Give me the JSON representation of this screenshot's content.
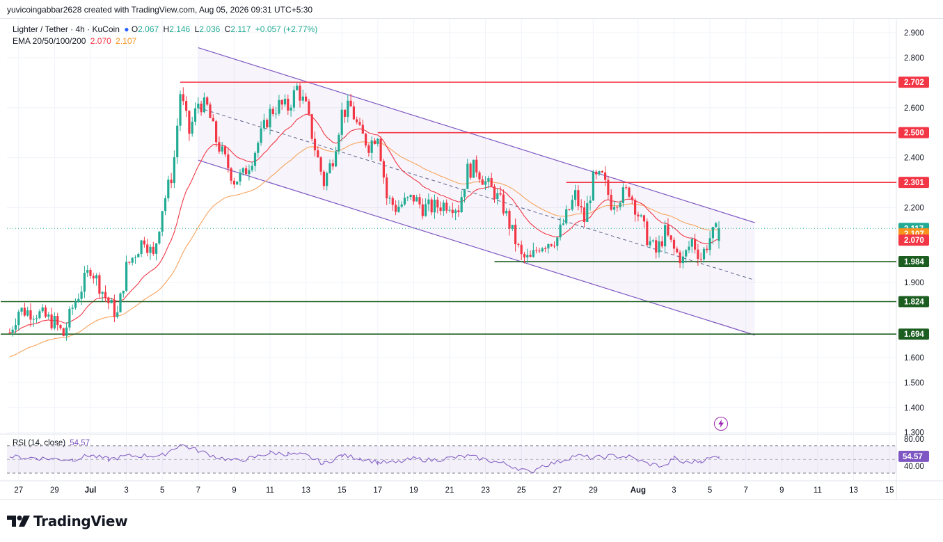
{
  "header": {
    "attribution": "yuvicoingabbar2628 created with TradingView.com, Aug 05, 2026 09:31 UTC+5:30",
    "symbol": "Lighter / Tether · 4h · KuCoin",
    "ohlc": {
      "o_label": "O",
      "o": "2.067",
      "h_label": "H",
      "h": "2.146",
      "l_label": "L",
      "l": "2.036",
      "c_label": "C",
      "c": "2.117",
      "change": "+0.057 (+2.77%)"
    },
    "ema_label": "EMA 20/50/100/200",
    "ema_20": "2.070",
    "ema_50": "2.107"
  },
  "rsi": {
    "label": "RSI (14, close)",
    "value": "54.57"
  },
  "logo": {
    "text": "TradingView",
    "icon": "tradingview-logo-icon"
  },
  "flash_icon": "lightning-icon",
  "colors": {
    "up": "#22ab94",
    "down": "#f23645",
    "ema20": "#f23645",
    "ema50": "#f7a35c",
    "channel": "#7e57c2",
    "resistance": "#f23645",
    "support": "#1b5e20",
    "rsi": "#7e57c2"
  },
  "chart_data": {
    "type": "candlestick",
    "title": "Lighter / Tether · 4h · KuCoin",
    "ylim": [
      1.3,
      2.9
    ],
    "y_ticks": [
      "2.900",
      "2.800",
      "2.600",
      "2.400",
      "2.200",
      "1.900",
      "1.600",
      "1.500",
      "1.400",
      "1.300"
    ],
    "y_tick_values": [
      2.9,
      2.8,
      2.6,
      2.4,
      2.2,
      1.9,
      1.6,
      1.5,
      1.4,
      1.3
    ],
    "x_ticks": [
      "27",
      "29",
      "Jul",
      "3",
      "5",
      "7",
      "9",
      "11",
      "13",
      "15",
      "17",
      "19",
      "21",
      "23",
      "25",
      "27",
      "29",
      "Aug",
      "3",
      "5",
      "7",
      "9",
      "11",
      "13",
      "15"
    ],
    "x_tick_days": [
      -4,
      -2,
      0,
      2,
      4,
      6,
      8,
      10,
      12,
      14,
      16,
      18,
      20,
      22,
      24,
      26,
      28,
      30.5,
      32.5,
      34.5,
      36.5,
      38.5,
      40.5,
      42.5,
      44.5
    ],
    "close_path": [
      [
        -4.5,
        1.7
      ],
      [
        -4,
        1.79
      ],
      [
        -3,
        1.78
      ],
      [
        -2,
        1.74
      ],
      [
        -1.5,
        1.69
      ],
      [
        -1,
        1.8
      ],
      [
        0,
        1.96
      ],
      [
        1,
        1.82
      ],
      [
        1.5,
        1.77
      ],
      [
        2,
        1.96
      ],
      [
        3,
        2.08
      ],
      [
        3.5,
        2.0
      ],
      [
        4,
        2.2
      ],
      [
        4.6,
        2.35
      ],
      [
        5,
        2.66
      ],
      [
        5.5,
        2.5
      ],
      [
        6,
        2.62
      ],
      [
        6.5,
        2.6
      ],
      [
        7,
        2.47
      ],
      [
        8,
        2.31
      ],
      [
        8.5,
        2.33
      ],
      [
        9,
        2.4
      ],
      [
        10,
        2.58
      ],
      [
        10.5,
        2.61
      ],
      [
        11,
        2.6
      ],
      [
        11.5,
        2.68
      ],
      [
        12,
        2.6
      ],
      [
        12.5,
        2.44
      ],
      [
        13,
        2.3
      ],
      [
        13.5,
        2.4
      ],
      [
        14,
        2.58
      ],
      [
        14.5,
        2.6
      ],
      [
        15,
        2.5
      ],
      [
        15.5,
        2.45
      ],
      [
        16,
        2.5
      ],
      [
        16.5,
        2.24
      ],
      [
        17,
        2.2
      ],
      [
        18,
        2.24
      ],
      [
        18.5,
        2.2
      ],
      [
        19,
        2.2
      ],
      [
        20,
        2.22
      ],
      [
        20.5,
        2.2
      ],
      [
        21,
        2.35
      ],
      [
        21.5,
        2.36
      ],
      [
        22,
        2.3
      ],
      [
        22.5,
        2.26
      ],
      [
        23,
        2.2
      ],
      [
        24,
        2.0
      ],
      [
        24.5,
        1.99
      ],
      [
        25,
        2.05
      ],
      [
        26,
        2.08
      ],
      [
        27,
        2.25
      ],
      [
        27.5,
        2.15
      ],
      [
        28,
        2.31
      ],
      [
        28.5,
        2.32
      ],
      [
        29,
        2.22
      ],
      [
        30,
        2.27
      ],
      [
        31,
        2.08
      ],
      [
        31.5,
        2.02
      ],
      [
        32,
        2.1
      ],
      [
        32.5,
        2.03
      ],
      [
        33,
        1.99
      ],
      [
        33.5,
        2.07
      ],
      [
        34,
        2.0
      ],
      [
        34.5,
        2.08
      ],
      [
        35,
        2.117
      ]
    ],
    "ema20_last": 2.07,
    "ema50_last": 2.107,
    "channel": {
      "upper": [
        [
          6,
          2.84
        ],
        [
          37,
          2.14
        ]
      ],
      "mid": [
        [
          6,
          2.6
        ],
        [
          37,
          1.91
        ]
      ],
      "lower": [
        [
          6,
          2.39
        ],
        [
          37,
          1.69
        ]
      ]
    },
    "horizontal_levels": [
      {
        "value": 2.702,
        "label": "2.702",
        "kind": "resistance",
        "from_day": 5
      },
      {
        "value": 2.5,
        "label": "2.500",
        "kind": "resistance",
        "from_day": 16
      },
      {
        "value": 2.301,
        "label": "2.301",
        "kind": "resistance",
        "from_day": 26.5
      },
      {
        "value": 1.984,
        "label": "1.984",
        "kind": "support",
        "from_day": 22.5
      },
      {
        "value": 1.824,
        "label": "1.824",
        "kind": "support",
        "from_day": -5
      },
      {
        "value": 1.694,
        "label": "1.694",
        "kind": "support",
        "from_day": -5
      }
    ],
    "price_labels": [
      {
        "value": 2.117,
        "label": "2.117",
        "color": "#22ab94"
      },
      {
        "value": 2.107,
        "label": "2.107",
        "color": "#f7941d",
        "y_adjust": 2.095
      },
      {
        "value": 2.07,
        "label": "2.070",
        "color": "#f23645"
      }
    ],
    "rsi_chart": {
      "ylim": [
        20,
        90
      ],
      "upper": 70,
      "lower": 30,
      "ticks": [
        "80.00",
        "40.00"
      ],
      "tick_values": [
        80,
        40
      ],
      "last": 54.57,
      "path": [
        [
          -4.5,
          54
        ],
        [
          -3,
          52
        ],
        [
          -1,
          50
        ],
        [
          0,
          56
        ],
        [
          1,
          50
        ],
        [
          2,
          55
        ],
        [
          4,
          56
        ],
        [
          5,
          72
        ],
        [
          6,
          63
        ],
        [
          7,
          54
        ],
        [
          8,
          48
        ],
        [
          9,
          52
        ],
        [
          10,
          60
        ],
        [
          11,
          58
        ],
        [
          12,
          56
        ],
        [
          13,
          44
        ],
        [
          14,
          56
        ],
        [
          15,
          52
        ],
        [
          16,
          46
        ],
        [
          17,
          45
        ],
        [
          18,
          51
        ],
        [
          19,
          49
        ],
        [
          20,
          52
        ],
        [
          21,
          55
        ],
        [
          22,
          50
        ],
        [
          23,
          44
        ],
        [
          24,
          36
        ],
        [
          24.5,
          30
        ],
        [
          25,
          40
        ],
        [
          26,
          46
        ],
        [
          27,
          56
        ],
        [
          28,
          52
        ],
        [
          29,
          55
        ],
        [
          30,
          54
        ],
        [
          31,
          44
        ],
        [
          32,
          40
        ],
        [
          32.5,
          52
        ],
        [
          33,
          45
        ],
        [
          34,
          48
        ],
        [
          35,
          55
        ]
      ]
    }
  }
}
